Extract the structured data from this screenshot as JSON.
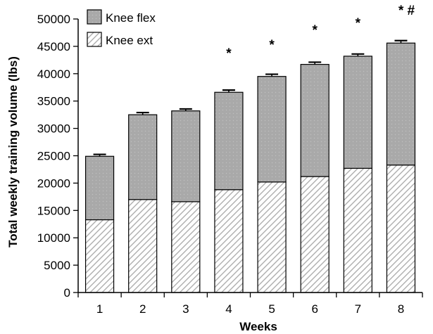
{
  "chart_data": {
    "type": "bar",
    "stacked": true,
    "title": "",
    "xlabel": "Weeks",
    "ylabel": "Total weekly training volume (lbs)",
    "ylim": [
      0,
      50000
    ],
    "yticks": [
      0,
      5000,
      10000,
      15000,
      20000,
      25000,
      30000,
      35000,
      40000,
      45000,
      50000
    ],
    "categories": [
      "1",
      "2",
      "3",
      "4",
      "5",
      "6",
      "7",
      "8"
    ],
    "series": [
      {
        "name": "Knee ext",
        "values": [
          13300,
          17000,
          16600,
          18800,
          20200,
          21200,
          22700,
          23300
        ],
        "error": [
          450,
          400,
          400,
          350,
          400,
          400,
          400,
          450
        ],
        "fill": "hatched",
        "color": "#b8b8b8"
      },
      {
        "name": "Knee flex",
        "values": [
          11600,
          15500,
          16600,
          17800,
          19300,
          20500,
          20500,
          22300
        ],
        "error": [
          350,
          400,
          350,
          400,
          400,
          400,
          400,
          450
        ],
        "fill": "dotted-gray",
        "color": "#a9a9a9"
      }
    ],
    "annotations": [
      {
        "category": "4",
        "text": "*"
      },
      {
        "category": "5",
        "text": "*"
      },
      {
        "category": "6",
        "text": "*"
      },
      {
        "category": "7",
        "text": "*"
      },
      {
        "category": "8",
        "text": "* #"
      }
    ],
    "legend": {
      "position": "top-left",
      "order": [
        "Knee flex",
        "Knee ext"
      ]
    },
    "grid": false
  }
}
